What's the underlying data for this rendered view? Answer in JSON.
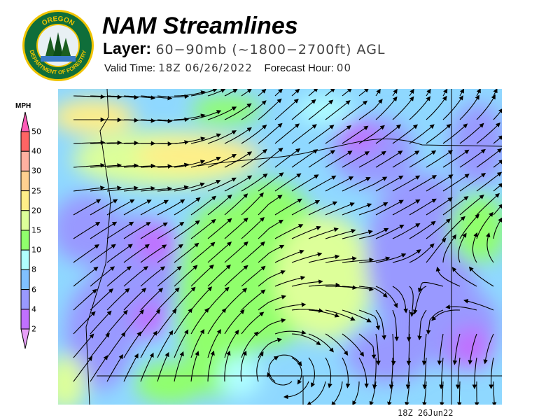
{
  "header": {
    "title": "NAM Streamlines",
    "layer_label": "Layer:",
    "layer_value": "60−90mb (~1800−2700ft) AGL",
    "valid_label": "Valid Time:",
    "valid_value": "18Z 06/26/2022",
    "forecast_label": "Forecast Hour:",
    "forecast_value": "00"
  },
  "logo": {
    "top_text": "OREGON",
    "bottom_text": "DEPARTMENT OF FORESTRY"
  },
  "legend": {
    "unit": "MPH",
    "levels": [
      "50",
      "40",
      "30",
      "25",
      "20",
      "15",
      "10",
      "8",
      "6",
      "4",
      "2"
    ],
    "colors": [
      "#ff6464",
      "#ffb0a0",
      "#ffd090",
      "#ffee88",
      "#ddff99",
      "#90ff6c",
      "#b0ffff",
      "#80c0ff",
      "#9999ff",
      "#c070ff"
    ],
    "over_color": "#ff5cb8",
    "under_color": "#e8a0f8"
  },
  "map": {
    "timestamp": "18Z 26Jun22"
  }
}
